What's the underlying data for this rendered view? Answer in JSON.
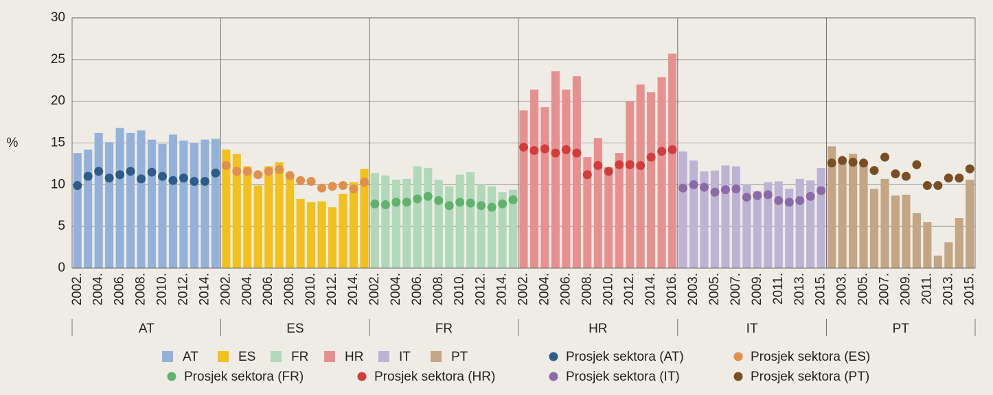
{
  "chart_data": {
    "type": "bar",
    "ylabel": "%",
    "ylim": [
      0,
      30
    ],
    "yticks": [
      0,
      5,
      10,
      15,
      20,
      25,
      30
    ],
    "grid": true,
    "panels": [
      {
        "label": "AT",
        "categories": [
          "2002.",
          null,
          "2004.",
          null,
          "2006.",
          null,
          "2008.",
          null,
          "2010.",
          null,
          "2012.",
          null,
          "2014.",
          null
        ],
        "series": [
          {
            "name": "AT",
            "type": "bar",
            "color": "#94b2d9",
            "values": [
              13.8,
              14.2,
              16.2,
              15.1,
              16.8,
              16.2,
              16.5,
              15.4,
              14.9,
              16.0,
              15.3,
              15.0,
              15.4,
              15.5
            ]
          },
          {
            "name": "Prosjek sektora (AT)",
            "type": "scatter",
            "color": "#2e5c8a",
            "values": [
              9.9,
              11.0,
              11.6,
              10.8,
              11.2,
              11.6,
              10.7,
              11.5,
              11.0,
              10.5,
              10.8,
              10.4,
              10.4,
              11.4
            ]
          }
        ]
      },
      {
        "label": "ES",
        "categories": [
          "2002.",
          null,
          "2004.",
          null,
          "2006.",
          null,
          "2008.",
          null,
          "2010.",
          null,
          "2012.",
          null,
          "2014.",
          null
        ],
        "series": [
          {
            "name": "ES",
            "type": "bar",
            "color": "#f2c11b",
            "values": [
              14.2,
              13.7,
              12.2,
              9.9,
              12.2,
              12.7,
              11.0,
              8.3,
              7.9,
              8.0,
              7.3,
              8.9,
              10.3,
              11.9
            ]
          },
          {
            "name": "Prosjek sektora (ES)",
            "type": "scatter",
            "color": "#e0904a",
            "values": [
              12.3,
              11.6,
              11.6,
              11.2,
              11.6,
              11.8,
              11.1,
              10.5,
              10.4,
              9.6,
              9.8,
              9.9,
              9.5,
              10.3
            ]
          }
        ]
      },
      {
        "label": "FR",
        "categories": [
          "2002.",
          null,
          "2004.",
          null,
          "2006.",
          null,
          "2008.",
          null,
          "2010.",
          null,
          "2012.",
          null,
          "2014.",
          null
        ],
        "series": [
          {
            "name": "FR",
            "type": "bar",
            "color": "#b1d8b9",
            "values": [
              11.4,
              11.1,
              10.6,
              10.7,
              12.2,
              12.0,
              10.6,
              9.8,
              11.2,
              11.5,
              10.0,
              9.8,
              9.1,
              9.4
            ]
          },
          {
            "name": "Prosjek sektora (FR)",
            "type": "scatter",
            "color": "#5fb36d",
            "values": [
              7.7,
              7.6,
              7.9,
              7.9,
              8.3,
              8.6,
              8.1,
              7.5,
              7.9,
              7.8,
              7.5,
              7.3,
              7.7,
              8.2
            ]
          }
        ]
      },
      {
        "label": "HR",
        "categories": [
          "2002.",
          null,
          "2004.",
          null,
          "2006.",
          null,
          "2008.",
          null,
          "2010.",
          null,
          "2012.",
          null,
          "2014.",
          null,
          "2016."
        ],
        "series": [
          {
            "name": "HR",
            "type": "bar",
            "color": "#e89090",
            "values": [
              18.9,
              21.4,
              19.3,
              23.6,
              21.4,
              23.0,
              13.3,
              15.6,
              12.1,
              13.8,
              20.0,
              22.0,
              21.1,
              22.9,
              25.7
            ]
          },
          {
            "name": "Prosjek sektora (HR)",
            "type": "scatter",
            "color": "#d63a3a",
            "values": [
              14.5,
              14.1,
              14.3,
              13.8,
              14.2,
              13.8,
              11.2,
              12.3,
              11.6,
              12.4,
              12.4,
              12.3,
              13.3,
              14.0,
              14.2
            ]
          }
        ]
      },
      {
        "label": "IT",
        "categories": [
          null,
          "2003.",
          null,
          "2005.",
          null,
          "2007.",
          null,
          "2009.",
          null,
          "2011.",
          null,
          "2013.",
          null,
          "2015."
        ],
        "series": [
          {
            "name": "IT",
            "type": "bar",
            "color": "#bdb3d4",
            "values": [
              14.0,
              12.9,
              11.6,
              11.7,
              12.3,
              12.2,
              10.0,
              9.2,
              10.3,
              10.4,
              9.5,
              10.7,
              10.5,
              12.0
            ]
          },
          {
            "name": "Prosjek sektora (IT)",
            "type": "scatter",
            "color": "#8b6aa8",
            "values": [
              9.6,
              10.0,
              9.7,
              9.1,
              9.4,
              9.5,
              8.5,
              8.7,
              8.8,
              8.1,
              7.9,
              8.1,
              8.6,
              9.3
            ]
          }
        ]
      },
      {
        "label": "PT",
        "categories": [
          null,
          "2003.",
          null,
          "2005.",
          null,
          "2007.",
          null,
          "2009.",
          null,
          "2011.",
          null,
          "2013.",
          null,
          "2015."
        ],
        "series": [
          {
            "name": "PT",
            "type": "bar",
            "color": "#c4a584",
            "values": [
              14.6,
              12.9,
              13.7,
              12.7,
              9.5,
              10.7,
              8.7,
              8.8,
              6.6,
              5.5,
              1.5,
              3.1,
              6.0,
              10.6
            ]
          },
          {
            "name": "Prosjek sektora (PT)",
            "type": "scatter",
            "color": "#7a4e22",
            "values": [
              12.6,
              12.9,
              12.7,
              12.6,
              11.7,
              13.3,
              11.3,
              11.0,
              12.4,
              9.9,
              9.9,
              10.8,
              10.8,
              11.9
            ]
          }
        ]
      }
    ]
  }
}
